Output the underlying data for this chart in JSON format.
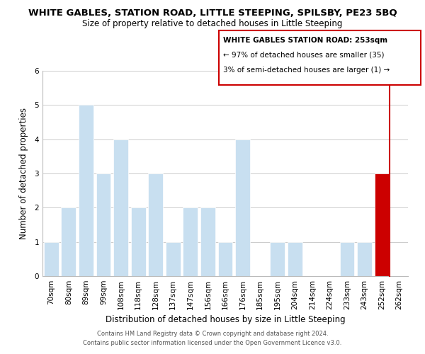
{
  "title": "WHITE GABLES, STATION ROAD, LITTLE STEEPING, SPILSBY, PE23 5BQ",
  "subtitle": "Size of property relative to detached houses in Little Steeping",
  "xlabel": "Distribution of detached houses by size in Little Steeping",
  "ylabel": "Number of detached properties",
  "bin_labels": [
    "70sqm",
    "80sqm",
    "89sqm",
    "99sqm",
    "108sqm",
    "118sqm",
    "128sqm",
    "137sqm",
    "147sqm",
    "156sqm",
    "166sqm",
    "176sqm",
    "185sqm",
    "195sqm",
    "204sqm",
    "214sqm",
    "224sqm",
    "233sqm",
    "243sqm",
    "252sqm",
    "262sqm"
  ],
  "bar_heights": [
    1,
    2,
    5,
    3,
    4,
    2,
    3,
    1,
    2,
    2,
    1,
    4,
    0,
    1,
    1,
    0,
    0,
    1,
    1,
    3,
    0
  ],
  "bar_colors": [
    "#c8dff0",
    "#c8dff0",
    "#c8dff0",
    "#c8dff0",
    "#c8dff0",
    "#c8dff0",
    "#c8dff0",
    "#c8dff0",
    "#c8dff0",
    "#c8dff0",
    "#c8dff0",
    "#c8dff0",
    "#c8dff0",
    "#c8dff0",
    "#c8dff0",
    "#c8dff0",
    "#c8dff0",
    "#c8dff0",
    "#c8dff0",
    "#cc0000",
    "#c8dff0"
  ],
  "highlight_index": 19,
  "highlight_color": "#cc0000",
  "ylim": [
    0,
    6
  ],
  "yticks": [
    0,
    1,
    2,
    3,
    4,
    5,
    6
  ],
  "legend_title": "WHITE GABLES STATION ROAD: 253sqm",
  "legend_line1": "← 97% of detached houses are smaller (35)",
  "legend_line2": "3% of semi-detached houses are larger (1) →",
  "footnote1": "Contains HM Land Registry data © Crown copyright and database right 2024.",
  "footnote2": "Contains public sector information licensed under the Open Government Licence v3.0.",
  "background_color": "#ffffff",
  "bar_edgecolor": "#ffffff",
  "grid_color": "#cccccc",
  "title_fontsize": 9.5,
  "subtitle_fontsize": 8.5,
  "axis_label_fontsize": 8.5,
  "tick_fontsize": 7.5,
  "legend_fontsize": 7.5
}
